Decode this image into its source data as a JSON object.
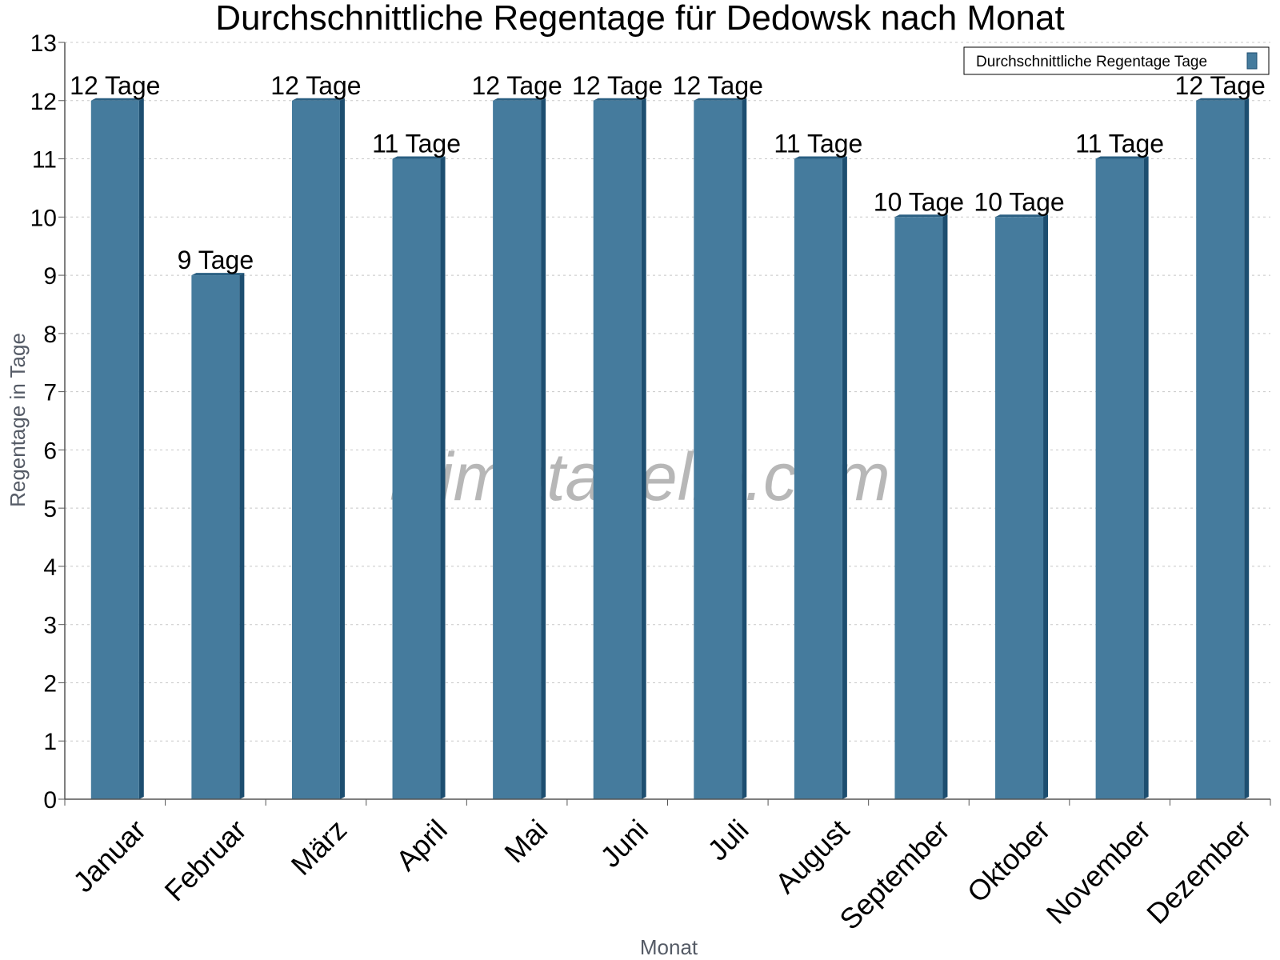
{
  "chart_data": {
    "type": "bar",
    "title": "Durchschnittliche Regentage für Dedowsk nach Monat",
    "xlabel": "Monat",
    "ylabel": "Regentage in Tage",
    "categories": [
      "Januar",
      "Februar",
      "März",
      "April",
      "Mai",
      "Juni",
      "Juli",
      "August",
      "September",
      "Oktober",
      "November",
      "Dezember"
    ],
    "series": [
      {
        "name": "Durchschnittliche Regentage Tage",
        "values": [
          12,
          9,
          12,
          11,
          12,
          12,
          12,
          11,
          10,
          10,
          11,
          12
        ],
        "labels": [
          "12 Tage",
          "9 Tage",
          "12 Tage",
          "11 Tage",
          "12 Tage",
          "12 Tage",
          "12 Tage",
          "11 Tage",
          "10 Tage",
          "10 Tage",
          "11 Tage",
          "12 Tage"
        ],
        "color": "#457b9d"
      }
    ],
    "ylim": [
      0,
      13
    ],
    "yticks": [
      0,
      1,
      2,
      3,
      4,
      5,
      6,
      7,
      8,
      9,
      10,
      11,
      12,
      13
    ],
    "grid": true,
    "legend_position": "top-right"
  },
  "watermark": "klimatabelle.com",
  "colors": {
    "bar_front": "#457b9d",
    "bar_side": "#1d4e70",
    "bar_top": "#2a5f82",
    "grid": "#c8c8c8",
    "axis": "#555555"
  }
}
